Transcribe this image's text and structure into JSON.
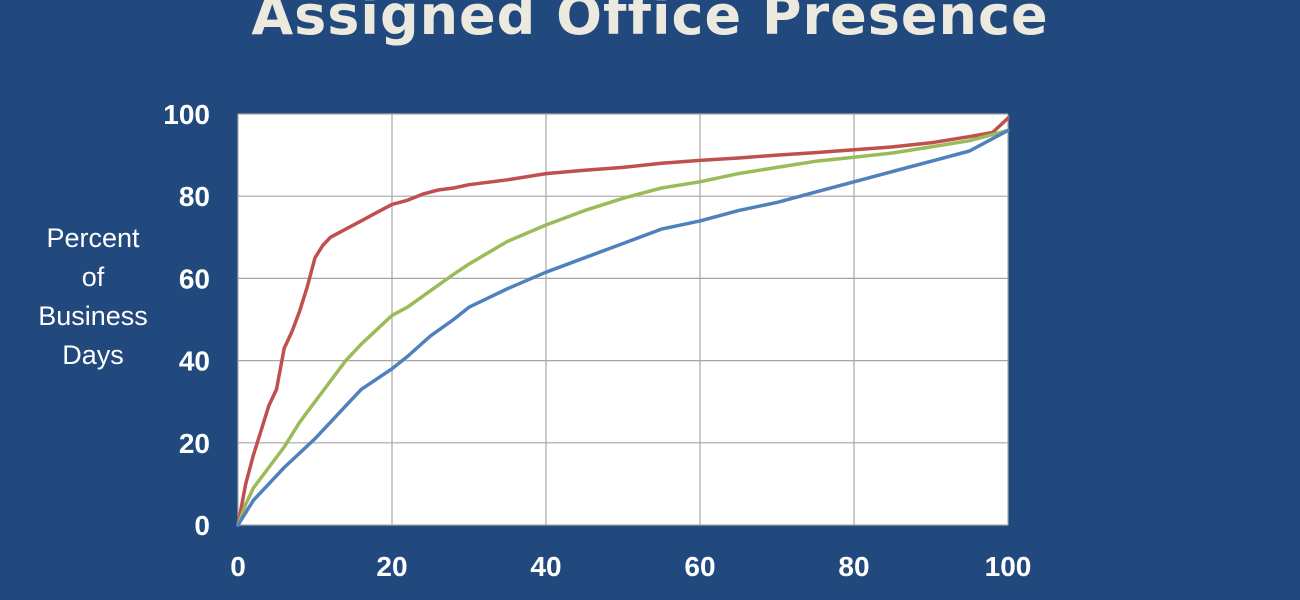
{
  "chart_data": {
    "type": "line",
    "title": "Assigned Office Presence",
    "ylabel": [
      "Percent",
      "of",
      "Business",
      "Days"
    ],
    "xlabel": "",
    "xlim": [
      0,
      100
    ],
    "ylim": [
      0,
      100
    ],
    "xticks": [
      "0",
      "20",
      "40",
      "60",
      "80",
      "100"
    ],
    "yticks": [
      "0",
      "20",
      "40",
      "60",
      "80",
      "100"
    ],
    "grid": true,
    "legend": "none",
    "series": [
      {
        "color": "#c0504d",
        "x": [
          0,
          1,
          2,
          3,
          4,
          5,
          6,
          7,
          8,
          9,
          10,
          11,
          12,
          14,
          16,
          18,
          20,
          22,
          24,
          26,
          28,
          30,
          35,
          40,
          45,
          50,
          55,
          60,
          65,
          70,
          75,
          80,
          85,
          90,
          95,
          98,
          100
        ],
        "y": [
          0,
          10,
          17,
          23,
          29,
          33,
          43,
          47,
          52,
          58,
          65,
          68,
          70,
          72,
          74,
          76,
          78,
          79,
          80.5,
          81.5,
          82,
          82.8,
          84,
          85.5,
          86.3,
          87,
          88,
          88.7,
          89.3,
          90,
          90.6,
          91.3,
          92,
          93,
          94.5,
          95.5,
          99
        ]
      },
      {
        "color": "#9bbb59",
        "x": [
          0,
          1,
          2,
          4,
          6,
          8,
          10,
          12,
          14,
          16,
          18,
          20,
          22,
          25,
          28,
          30,
          35,
          40,
          45,
          50,
          55,
          60,
          65,
          70,
          75,
          80,
          85,
          90,
          95,
          100
        ],
        "y": [
          0,
          5,
          9,
          14,
          19,
          25,
          30,
          35,
          40,
          44,
          47.5,
          51,
          53,
          57,
          61,
          63.5,
          69,
          73,
          76.5,
          79.5,
          82,
          83.5,
          85.5,
          87,
          88.5,
          89.5,
          90.5,
          92,
          93.5,
          96
        ]
      },
      {
        "color": "#4f81bd",
        "x": [
          0,
          1,
          2,
          4,
          6,
          8,
          10,
          12,
          14,
          16,
          18,
          20,
          22,
          25,
          28,
          30,
          35,
          40,
          45,
          50,
          55,
          60,
          65,
          70,
          75,
          80,
          85,
          90,
          95,
          100
        ],
        "y": [
          0,
          3,
          6,
          10,
          14,
          17.5,
          21,
          25,
          29,
          33,
          35.5,
          38,
          41,
          46,
          50,
          53,
          57.5,
          61.5,
          65,
          68.5,
          72,
          74,
          76.5,
          78.5,
          81,
          83.5,
          86,
          88.5,
          91,
          96
        ]
      }
    ]
  }
}
